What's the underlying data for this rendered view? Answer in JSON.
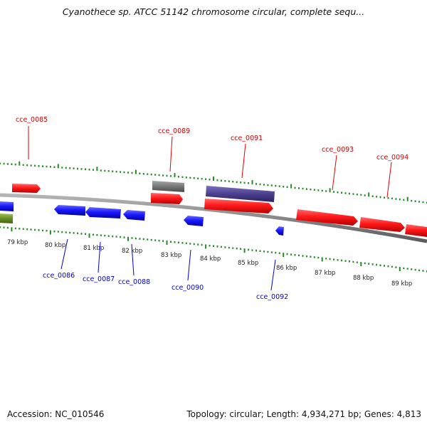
{
  "title": "Cyanothece sp. ATCC 51142 chromosome circular, complete sequ...",
  "footer": {
    "accession_label": "Accession: ",
    "accession": "NC_010546",
    "topology_label": "Topology: ",
    "topology": "circular",
    "length_label": "; Length: ",
    "length": "4,934,271 bp",
    "genes_label": "; Genes: ",
    "genes": "4,813"
  },
  "colors": {
    "forward_gene": "#ff0000",
    "reverse_gene": "#0000ff",
    "forward_label": "#cc0000",
    "reverse_label": "#0000cc",
    "ticks": "#228b22",
    "backbone": "#888888",
    "gray_feature": "#777777",
    "purple_feature": "#4b3f8f",
    "olive_feature": "#6b8e23"
  },
  "axis": {
    "unit": "kbp",
    "ticks_kbp": [
      79,
      80,
      81,
      82,
      83,
      84,
      85,
      86,
      87,
      88,
      89
    ]
  },
  "labels": {
    "forward": [
      "cce_0085",
      "cce_0089",
      "cce_0091",
      "cce_0093",
      "cce_0094"
    ],
    "reverse": [
      "cce_0086",
      "cce_0087",
      "cce_0088",
      "cce_0090",
      "cce_0092"
    ]
  }
}
